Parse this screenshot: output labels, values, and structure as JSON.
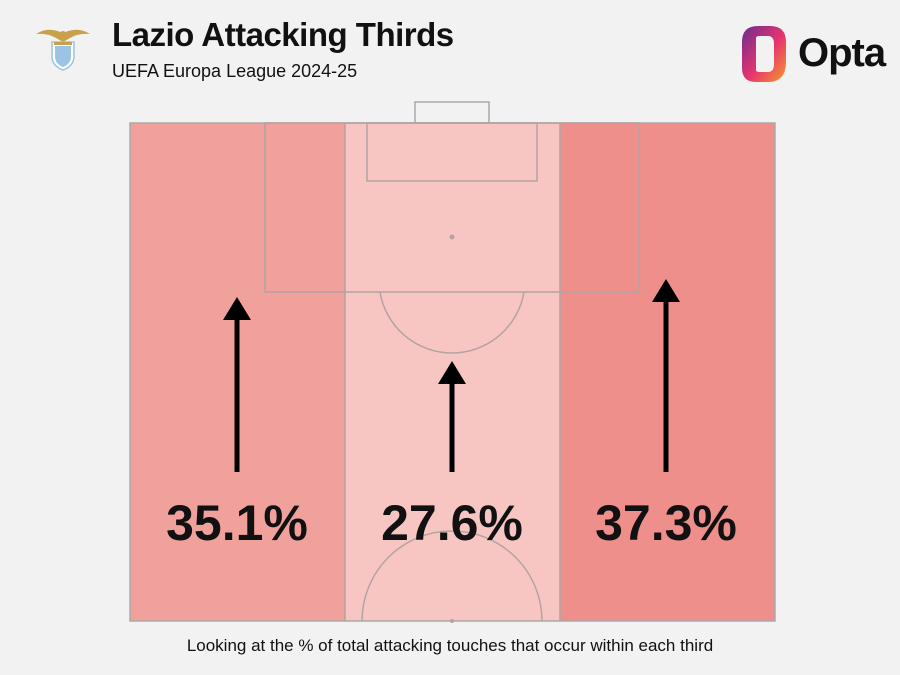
{
  "header": {
    "title": "Lazio Attacking Thirds",
    "subtitle": "UEFA Europa League 2024-25",
    "crest_icon": "lazio-eagle-crest-icon",
    "brand": "Opta",
    "brand_colors": [
      "#6b2c91",
      "#e8356d",
      "#f39c2b"
    ]
  },
  "chart_data": {
    "type": "heatmap",
    "title": "Lazio Attacking Thirds",
    "subtitle": "UEFA Europa League 2024-25",
    "categories": [
      "Left",
      "Centre",
      "Right"
    ],
    "values": [
      35.1,
      27.6,
      37.3
    ],
    "labels": [
      "35.1%",
      "27.6%",
      "37.3%"
    ],
    "unit": "%",
    "colors": [
      "#f1a19c",
      "#f7c6c2",
      "#ee8f8b"
    ],
    "caption": "Looking at the % of total attacking touches that occur within each third"
  }
}
